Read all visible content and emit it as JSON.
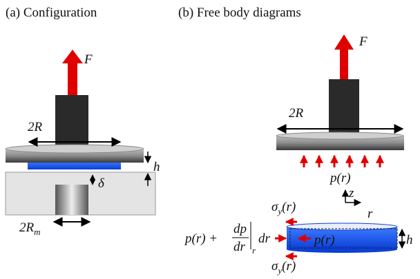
{
  "panel_a": {
    "title": "(a) Configuration",
    "force": "F",
    "diameter": "2R",
    "thickness": "h",
    "gap": "δ",
    "hole_diameter": {
      "main": "2R",
      "sub": "m"
    }
  },
  "panel_b": {
    "title": "(b) Free body diagrams",
    "force": "F",
    "diameter": "2R",
    "pressure": "p(r)",
    "axis_z": "z",
    "axis_r": "r",
    "stress_top": {
      "main": "σ",
      "sub": "y",
      "tail": "(r)"
    },
    "stress_bottom": {
      "main": "σ",
      "sub": "y",
      "tail": "(r)"
    },
    "pressure_gradient": {
      "lead": "p(r) +",
      "numerator": "dp",
      "denominator": "dr",
      "sub": "r",
      "tail": "dr"
    },
    "inner_pressure": "p(r)",
    "thickness": "h"
  }
}
